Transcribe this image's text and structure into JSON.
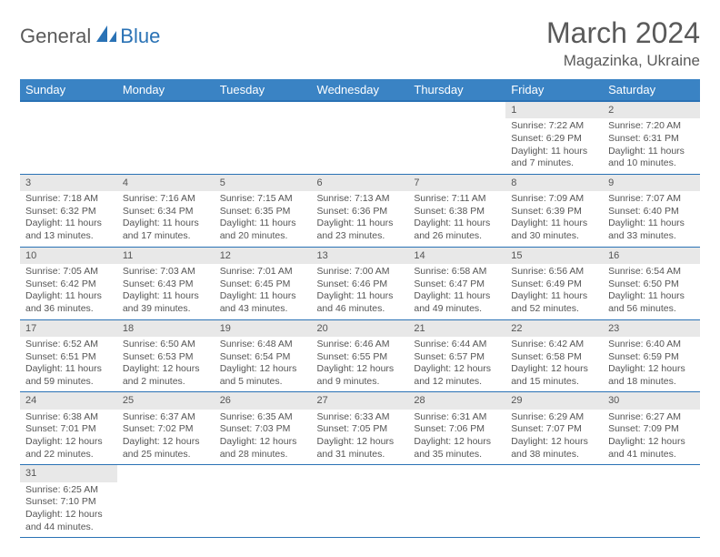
{
  "logo": {
    "part1": "General",
    "part2": "Blue"
  },
  "title": "March 2024",
  "location": "Magazinka, Ukraine",
  "colors": {
    "header_bg": "#3a83c4",
    "header_border": "#2a72b5",
    "daynum_bg": "#e8e8e8",
    "text": "#555555",
    "logo_blue": "#2a72b5"
  },
  "weekdays": [
    "Sunday",
    "Monday",
    "Tuesday",
    "Wednesday",
    "Thursday",
    "Friday",
    "Saturday"
  ],
  "weeks": [
    [
      {
        "day": "",
        "lines": []
      },
      {
        "day": "",
        "lines": []
      },
      {
        "day": "",
        "lines": []
      },
      {
        "day": "",
        "lines": []
      },
      {
        "day": "",
        "lines": []
      },
      {
        "day": "1",
        "lines": [
          "Sunrise: 7:22 AM",
          "Sunset: 6:29 PM",
          "Daylight: 11 hours",
          "and 7 minutes."
        ]
      },
      {
        "day": "2",
        "lines": [
          "Sunrise: 7:20 AM",
          "Sunset: 6:31 PM",
          "Daylight: 11 hours",
          "and 10 minutes."
        ]
      }
    ],
    [
      {
        "day": "3",
        "lines": [
          "Sunrise: 7:18 AM",
          "Sunset: 6:32 PM",
          "Daylight: 11 hours",
          "and 13 minutes."
        ]
      },
      {
        "day": "4",
        "lines": [
          "Sunrise: 7:16 AM",
          "Sunset: 6:34 PM",
          "Daylight: 11 hours",
          "and 17 minutes."
        ]
      },
      {
        "day": "5",
        "lines": [
          "Sunrise: 7:15 AM",
          "Sunset: 6:35 PM",
          "Daylight: 11 hours",
          "and 20 minutes."
        ]
      },
      {
        "day": "6",
        "lines": [
          "Sunrise: 7:13 AM",
          "Sunset: 6:36 PM",
          "Daylight: 11 hours",
          "and 23 minutes."
        ]
      },
      {
        "day": "7",
        "lines": [
          "Sunrise: 7:11 AM",
          "Sunset: 6:38 PM",
          "Daylight: 11 hours",
          "and 26 minutes."
        ]
      },
      {
        "day": "8",
        "lines": [
          "Sunrise: 7:09 AM",
          "Sunset: 6:39 PM",
          "Daylight: 11 hours",
          "and 30 minutes."
        ]
      },
      {
        "day": "9",
        "lines": [
          "Sunrise: 7:07 AM",
          "Sunset: 6:40 PM",
          "Daylight: 11 hours",
          "and 33 minutes."
        ]
      }
    ],
    [
      {
        "day": "10",
        "lines": [
          "Sunrise: 7:05 AM",
          "Sunset: 6:42 PM",
          "Daylight: 11 hours",
          "and 36 minutes."
        ]
      },
      {
        "day": "11",
        "lines": [
          "Sunrise: 7:03 AM",
          "Sunset: 6:43 PM",
          "Daylight: 11 hours",
          "and 39 minutes."
        ]
      },
      {
        "day": "12",
        "lines": [
          "Sunrise: 7:01 AM",
          "Sunset: 6:45 PM",
          "Daylight: 11 hours",
          "and 43 minutes."
        ]
      },
      {
        "day": "13",
        "lines": [
          "Sunrise: 7:00 AM",
          "Sunset: 6:46 PM",
          "Daylight: 11 hours",
          "and 46 minutes."
        ]
      },
      {
        "day": "14",
        "lines": [
          "Sunrise: 6:58 AM",
          "Sunset: 6:47 PM",
          "Daylight: 11 hours",
          "and 49 minutes."
        ]
      },
      {
        "day": "15",
        "lines": [
          "Sunrise: 6:56 AM",
          "Sunset: 6:49 PM",
          "Daylight: 11 hours",
          "and 52 minutes."
        ]
      },
      {
        "day": "16",
        "lines": [
          "Sunrise: 6:54 AM",
          "Sunset: 6:50 PM",
          "Daylight: 11 hours",
          "and 56 minutes."
        ]
      }
    ],
    [
      {
        "day": "17",
        "lines": [
          "Sunrise: 6:52 AM",
          "Sunset: 6:51 PM",
          "Daylight: 11 hours",
          "and 59 minutes."
        ]
      },
      {
        "day": "18",
        "lines": [
          "Sunrise: 6:50 AM",
          "Sunset: 6:53 PM",
          "Daylight: 12 hours",
          "and 2 minutes."
        ]
      },
      {
        "day": "19",
        "lines": [
          "Sunrise: 6:48 AM",
          "Sunset: 6:54 PM",
          "Daylight: 12 hours",
          "and 5 minutes."
        ]
      },
      {
        "day": "20",
        "lines": [
          "Sunrise: 6:46 AM",
          "Sunset: 6:55 PM",
          "Daylight: 12 hours",
          "and 9 minutes."
        ]
      },
      {
        "day": "21",
        "lines": [
          "Sunrise: 6:44 AM",
          "Sunset: 6:57 PM",
          "Daylight: 12 hours",
          "and 12 minutes."
        ]
      },
      {
        "day": "22",
        "lines": [
          "Sunrise: 6:42 AM",
          "Sunset: 6:58 PM",
          "Daylight: 12 hours",
          "and 15 minutes."
        ]
      },
      {
        "day": "23",
        "lines": [
          "Sunrise: 6:40 AM",
          "Sunset: 6:59 PM",
          "Daylight: 12 hours",
          "and 18 minutes."
        ]
      }
    ],
    [
      {
        "day": "24",
        "lines": [
          "Sunrise: 6:38 AM",
          "Sunset: 7:01 PM",
          "Daylight: 12 hours",
          "and 22 minutes."
        ]
      },
      {
        "day": "25",
        "lines": [
          "Sunrise: 6:37 AM",
          "Sunset: 7:02 PM",
          "Daylight: 12 hours",
          "and 25 minutes."
        ]
      },
      {
        "day": "26",
        "lines": [
          "Sunrise: 6:35 AM",
          "Sunset: 7:03 PM",
          "Daylight: 12 hours",
          "and 28 minutes."
        ]
      },
      {
        "day": "27",
        "lines": [
          "Sunrise: 6:33 AM",
          "Sunset: 7:05 PM",
          "Daylight: 12 hours",
          "and 31 minutes."
        ]
      },
      {
        "day": "28",
        "lines": [
          "Sunrise: 6:31 AM",
          "Sunset: 7:06 PM",
          "Daylight: 12 hours",
          "and 35 minutes."
        ]
      },
      {
        "day": "29",
        "lines": [
          "Sunrise: 6:29 AM",
          "Sunset: 7:07 PM",
          "Daylight: 12 hours",
          "and 38 minutes."
        ]
      },
      {
        "day": "30",
        "lines": [
          "Sunrise: 6:27 AM",
          "Sunset: 7:09 PM",
          "Daylight: 12 hours",
          "and 41 minutes."
        ]
      }
    ],
    [
      {
        "day": "31",
        "lines": [
          "Sunrise: 6:25 AM",
          "Sunset: 7:10 PM",
          "Daylight: 12 hours",
          "and 44 minutes."
        ]
      },
      {
        "day": "",
        "lines": []
      },
      {
        "day": "",
        "lines": []
      },
      {
        "day": "",
        "lines": []
      },
      {
        "day": "",
        "lines": []
      },
      {
        "day": "",
        "lines": []
      },
      {
        "day": "",
        "lines": []
      }
    ]
  ]
}
